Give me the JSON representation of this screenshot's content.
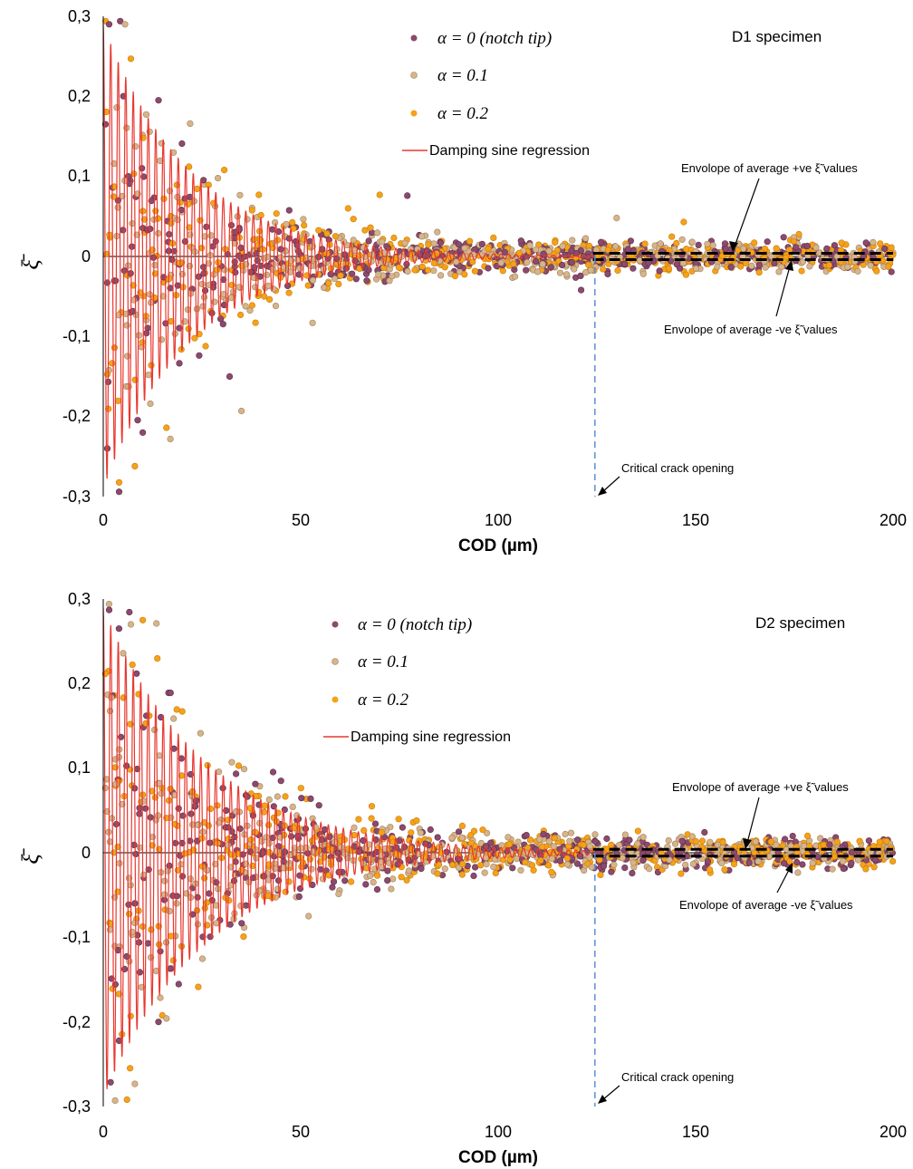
{
  "chart_data": [
    {
      "type": "scatter",
      "title": "",
      "specimen_label": "D1 specimen",
      "xlabel": "COD (µm)",
      "ylabel": "ξ̄",
      "xlim": [
        0,
        200
      ],
      "ylim": [
        -0.3,
        0.3
      ],
      "x_ticks": [
        "0",
        "50",
        "100",
        "150",
        "200"
      ],
      "y_ticks": [
        "0,3",
        "0,2",
        "0,1",
        "0",
        "-0,1",
        "-0,2",
        "-0,3"
      ],
      "legend_position": "top-center",
      "series": [
        {
          "name": "α = 0 (notch tip)",
          "color": "#8b4a6e",
          "kind": "scatter"
        },
        {
          "name": "α = 0.1",
          "color": "#d8b48a",
          "kind": "scatter"
        },
        {
          "name": "α = 0.2",
          "color": "#f5a21a",
          "kind": "scatter"
        },
        {
          "name": "Damping sine regression",
          "color": "#e8382f",
          "kind": "line",
          "model": {
            "amplitude": 0.29,
            "decay_per_um": 0.045,
            "period_um": 1.9
          }
        }
      ],
      "envelope_upper": {
        "value": 0.004,
        "x_start": 124,
        "x_end": 200
      },
      "envelope_lower": {
        "value": -0.004,
        "x_start": 124,
        "x_end": 200
      },
      "critical_crack_opening": 124.5,
      "annotations": {
        "upper": "Envolope of average +ve ξ̃ values",
        "lower": "Envolope of average -ve ξ̃ values",
        "critical": "Critical crack opening"
      },
      "notable_points": [
        {
          "x": 32,
          "y": -0.15
        },
        {
          "x": 35,
          "y": -0.193
        },
        {
          "x": 7,
          "y": 0.247
        },
        {
          "x": 1.5,
          "y": 0.29
        },
        {
          "x": 5.5,
          "y": 0.29
        },
        {
          "x": 8,
          "y": -0.262
        },
        {
          "x": 14,
          "y": 0.195
        },
        {
          "x": 22,
          "y": 0.166
        },
        {
          "x": 16,
          "y": -0.214
        },
        {
          "x": 10,
          "y": -0.22
        },
        {
          "x": 17,
          "y": -0.228
        },
        {
          "x": 70,
          "y": 0.077
        },
        {
          "x": 77,
          "y": 0.076
        },
        {
          "x": 130,
          "y": 0.048
        },
        {
          "x": 147,
          "y": 0.043
        },
        {
          "x": 121,
          "y": -0.042
        },
        {
          "x": 53,
          "y": -0.083
        },
        {
          "x": 62,
          "y": 0.06
        }
      ]
    },
    {
      "type": "scatter",
      "title": "",
      "specimen_label": "D2 specimen",
      "xlabel": "COD (µm)",
      "ylabel": "ξ̄",
      "xlim": [
        0,
        200
      ],
      "ylim": [
        -0.3,
        0.3
      ],
      "x_ticks": [
        "0",
        "50",
        "100",
        "150",
        "200"
      ],
      "y_ticks": [
        "0,3",
        "0,2",
        "0,1",
        "0",
        "-0,1",
        "-0,2",
        "-0,3"
      ],
      "legend_position": "top-center",
      "series": [
        {
          "name": "α = 0 (notch tip)",
          "color": "#8b4a6e",
          "kind": "scatter"
        },
        {
          "name": "α = 0.1",
          "color": "#d8b48a",
          "kind": "scatter"
        },
        {
          "name": "α = 0.2",
          "color": "#f5a21a",
          "kind": "scatter"
        },
        {
          "name": "Damping sine regression",
          "color": "#e8382f",
          "kind": "line",
          "model": {
            "amplitude": 0.29,
            "decay_per_um": 0.038,
            "period_um": 1.9
          }
        }
      ],
      "envelope_upper": {
        "value": 0.004,
        "x_start": 124,
        "x_end": 200
      },
      "envelope_lower": {
        "value": -0.004,
        "x_start": 124,
        "x_end": 200
      },
      "critical_crack_opening": 124.5,
      "annotations": {
        "upper": "Envolope of average +ve ξ̃ values",
        "lower": "Envolope of average -ve ξ̃ values",
        "critical": "Critical crack opening"
      },
      "notable_points": [
        {
          "x": 1.5,
          "y": 0.287
        },
        {
          "x": 7,
          "y": 0.27
        },
        {
          "x": 10,
          "y": 0.275
        },
        {
          "x": 4,
          "y": 0.265
        },
        {
          "x": 3,
          "y": -0.293
        },
        {
          "x": 6,
          "y": -0.292
        },
        {
          "x": 14,
          "y": -0.2
        },
        {
          "x": 16,
          "y": -0.196
        },
        {
          "x": 20,
          "y": 0.167
        },
        {
          "x": 45,
          "y": 0.085
        },
        {
          "x": 52,
          "y": -0.075
        },
        {
          "x": 68,
          "y": 0.055
        }
      ]
    }
  ]
}
